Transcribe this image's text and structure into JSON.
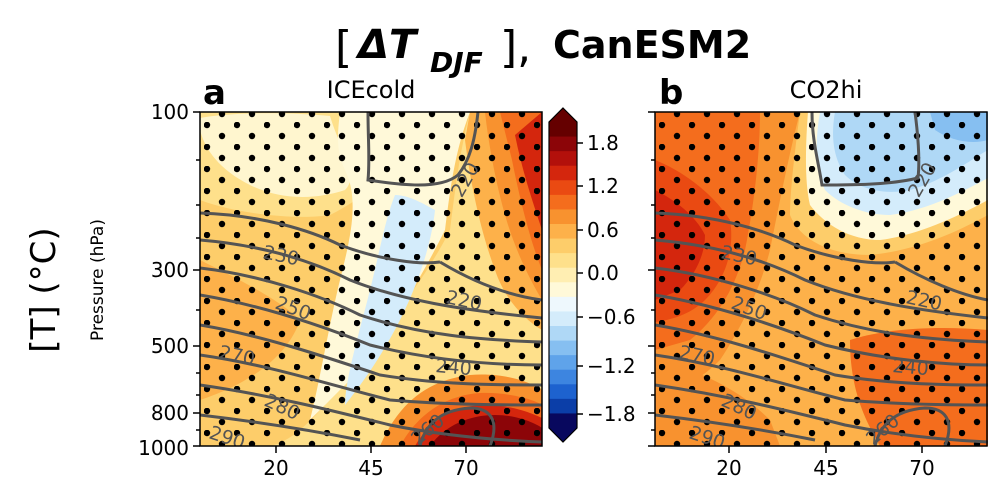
{
  "figure": {
    "title_prefix": "[",
    "title_delta": "ΔT",
    "title_sub": "DJF",
    "title_suffix": "],",
    "title_model": "CanESM2",
    "side_label": "[T] (°C)",
    "ylabel": "Pressure (hPa)"
  },
  "chart_data": [
    {
      "type": "contourf",
      "panel": "a",
      "title": "ICEcold",
      "ylabel": "Pressure (hPa)",
      "yticks": [
        100,
        300,
        500,
        800,
        1000
      ],
      "xticks": [
        20,
        45,
        70
      ],
      "xlim": [
        0,
        90
      ],
      "ylim": [
        1000,
        100
      ],
      "yscale": "log",
      "stippling": true,
      "contour_lines": [
        "220",
        "230",
        "220",
        "250",
        "270",
        "240",
        "280",
        "290",
        "260"
      ]
    },
    {
      "type": "contourf",
      "panel": "b",
      "title": "CO2hi",
      "yticks": [
        100,
        300,
        500,
        800,
        1000
      ],
      "xticks": [
        20,
        45,
        70
      ],
      "xlim": [
        0,
        90
      ],
      "ylim": [
        1000,
        100
      ],
      "yscale": "log",
      "stippling": true,
      "contour_lines": [
        "220",
        "230",
        "220",
        "250",
        "270",
        "240",
        "280",
        "290",
        "260"
      ]
    }
  ],
  "colorbar": {
    "ticks": [
      "1.8",
      "1.2",
      "0.6",
      "0.0",
      "−0.6",
      "−1.2",
      "−1.8"
    ],
    "range": [
      -2.1,
      2.1
    ],
    "colors": [
      "#08085e",
      "#0b3ea8",
      "#1d62cf",
      "#3d85e0",
      "#5fa3ea",
      "#86bff1",
      "#afd8f6",
      "#d4ecfb",
      "#eef8fd",
      "#fff9d9",
      "#ffeeb2",
      "#fee08b",
      "#fdcd6a",
      "#fdb14a",
      "#f8922f",
      "#f46d1d",
      "#ea4a12",
      "#d4260d",
      "#b3100b",
      "#8c0508",
      "#650000"
    ]
  }
}
